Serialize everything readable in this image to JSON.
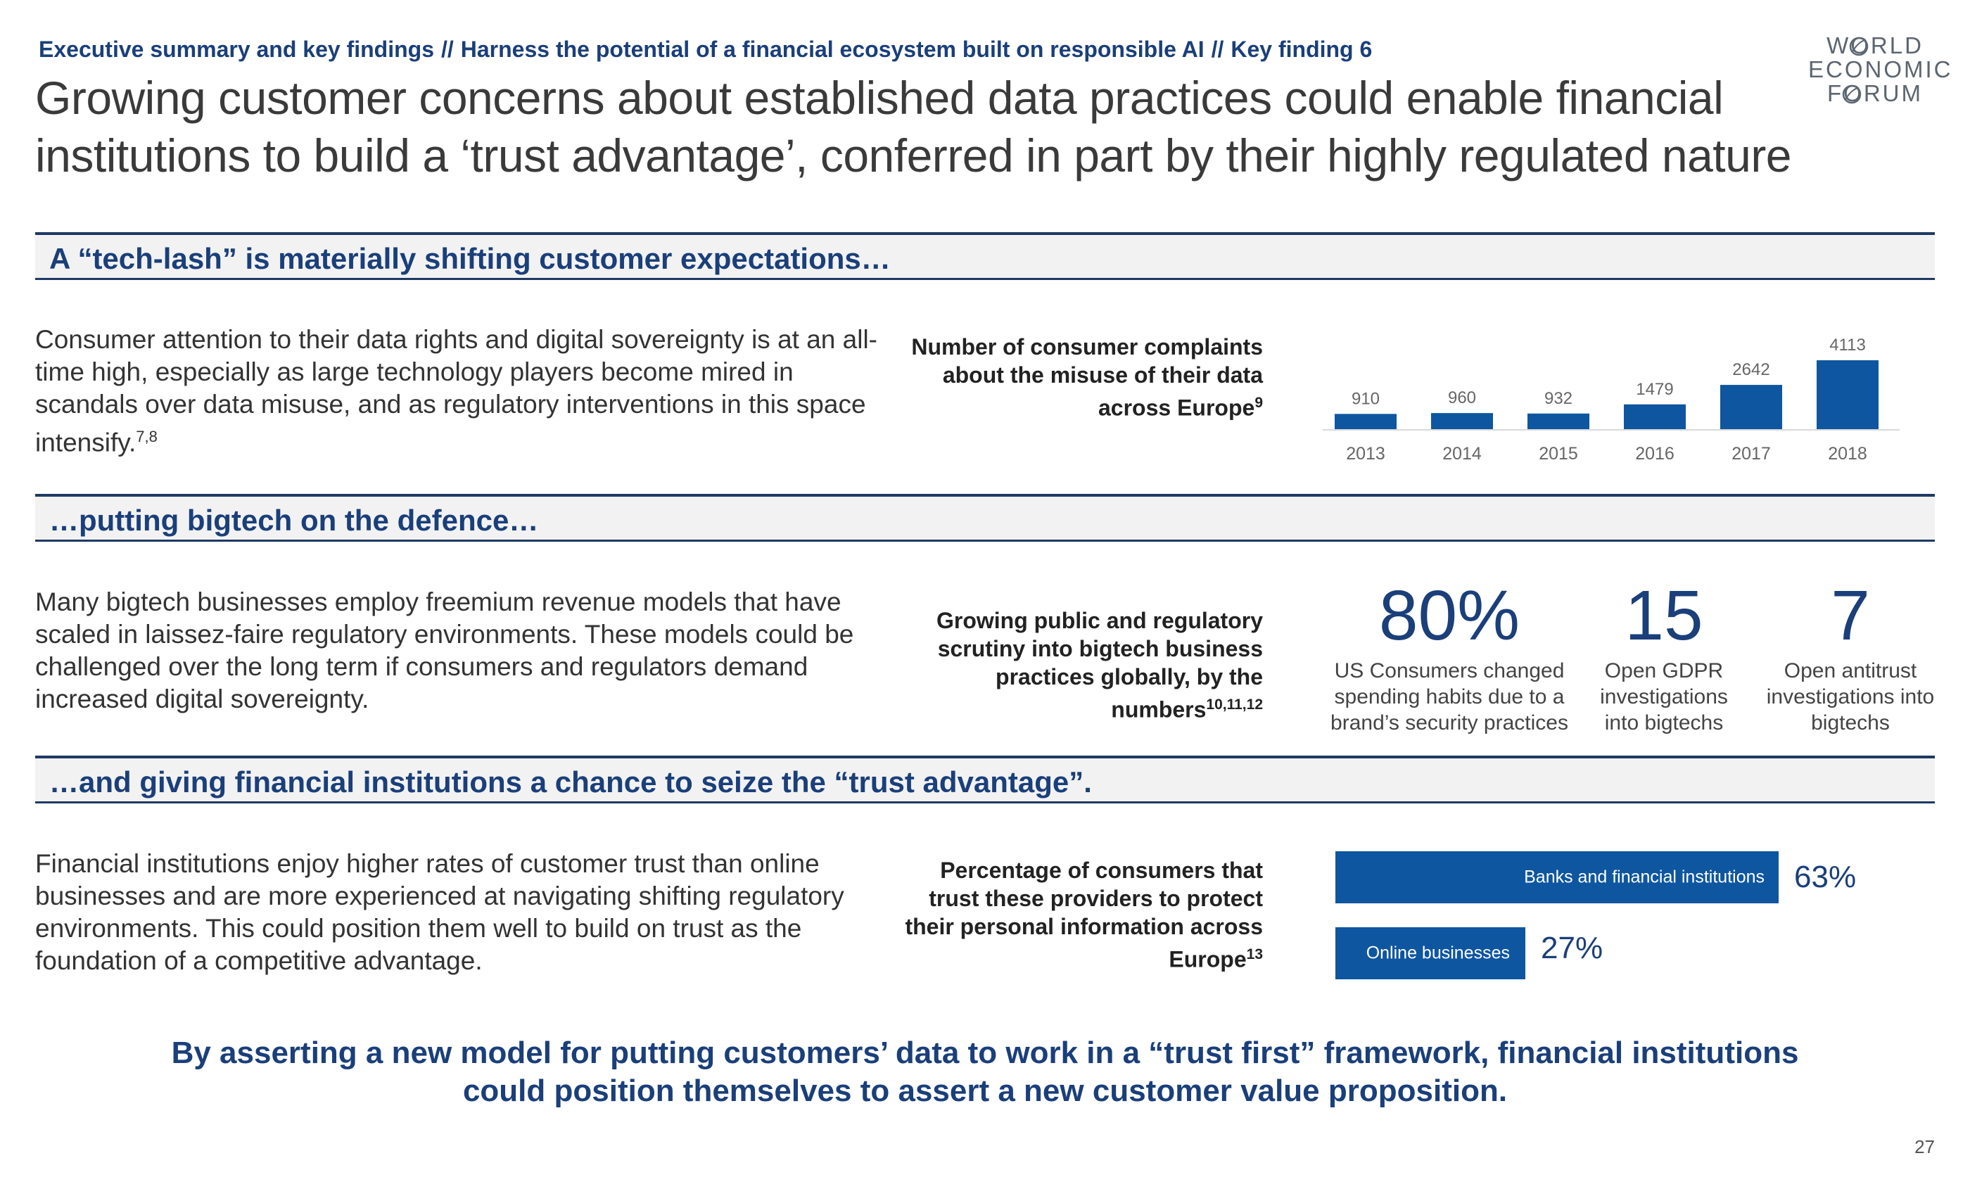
{
  "breadcrumb": {
    "part1": "Executive summary and key findings",
    "sep": "//",
    "part2": "Harness the potential of a financial ecosystem built on responsible AI",
    "part3": "Key finding 6"
  },
  "title": "Growing customer concerns about established data practices could enable financial institutions to build a ‘trust advantage’, conferred in part by their highly regulated nature",
  "logo": {
    "line1": "W",
    "line1b": "RLD",
    "line2": "ECONOMIC",
    "line3": "F",
    "line3b": "RUM",
    "text": "WORLD ECONOMIC FORUM"
  },
  "colors": {
    "accent": "#1a3f7a",
    "bar": "#0e56a0",
    "band": "#f2f2f2"
  },
  "sections": [
    {
      "heading": "A “tech-lash” is materially shifting customer expectations…",
      "body": "Consumer attention to their data rights and digital sovereignty is at an all-time high, especially as large technology players become mired in scandals over data misuse, and as regulatory interventions in this space intensify.",
      "body_sup": "7,8",
      "chart_label": "Number of consumer complaints about the misuse of their data across Europe",
      "chart_label_sup": "9"
    },
    {
      "heading": "…putting bigtech on the defence…",
      "body": "Many bigtech businesses employ freemium revenue models that have scaled in laissez-faire regulatory environments. These models could be challenged over the long term if consumers and regulators demand increased digital sovereignty.",
      "chart_label": "Growing public and regulatory scrutiny into bigtech business practices globally, by the numbers",
      "chart_label_sup": "10,11,12",
      "stats": [
        {
          "number": "80%",
          "desc": "US Consumers changed spending habits due to a brand’s security practices"
        },
        {
          "number": "15",
          "desc": "Open GDPR investigations into bigtechs"
        },
        {
          "number": "7",
          "desc": "Open antitrust investigations into bigtechs"
        }
      ]
    },
    {
      "heading": "…and giving financial institutions a chance to seize the “trust advantage”.",
      "body": "Financial institutions enjoy higher rates of customer trust than online businesses and are more experienced at navigating shifting regulatory environments. This could position them well to build on trust as the foundation of a competitive advantage.",
      "chart_label": "Percentage of consumers that trust these providers to protect their personal information across Europe",
      "chart_label_sup": "13",
      "trust_bars": [
        {
          "label": "Banks and financial institutions",
          "value": 63,
          "display": "63%"
        },
        {
          "label": "Online businesses",
          "value": 27,
          "display": "27%"
        }
      ]
    }
  ],
  "chart_data": [
    {
      "type": "bar",
      "categories": [
        "2013",
        "2014",
        "2015",
        "2016",
        "2017",
        "2018"
      ],
      "values": [
        910,
        960,
        932,
        1479,
        2642,
        4113
      ],
      "value_labels": [
        "910",
        "960",
        "932",
        "1479",
        "2642",
        "4113"
      ],
      "title": "Number of consumer complaints about the misuse of their data across Europe",
      "ylim": [
        0,
        4200
      ],
      "grid": false
    },
    {
      "type": "bar",
      "orientation": "horizontal",
      "categories": [
        "Banks and financial institutions",
        "Online businesses"
      ],
      "values": [
        63,
        27
      ],
      "title": "Percentage of consumers that trust these providers to protect their personal information across Europe"
    }
  ],
  "conclusion": "By asserting a new model for putting customers’ data to work in a “trust first” framework, financial institutions could position themselves to assert a new customer value proposition.",
  "page_number": "27"
}
